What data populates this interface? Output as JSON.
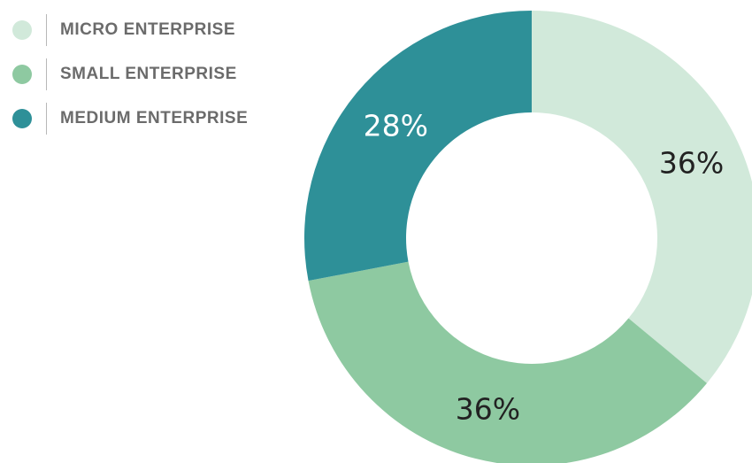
{
  "chart_data": {
    "type": "pie",
    "variant": "donut",
    "categories": [
      "MICRO ENTERPRISE",
      "SMALL ENTERPRISE",
      "MEDIUM ENTERPRISE"
    ],
    "values": [
      36,
      36,
      28
    ],
    "data_labels": [
      "36%",
      "36%",
      "28%"
    ],
    "colors": [
      "#d1e9da",
      "#8ec9a1",
      "#2e9098"
    ],
    "label_colors": [
      "#222222",
      "#222222",
      "#ffffff"
    ],
    "legend_position": "top-left",
    "start_angle_deg": 0,
    "direction": "clockwise"
  }
}
